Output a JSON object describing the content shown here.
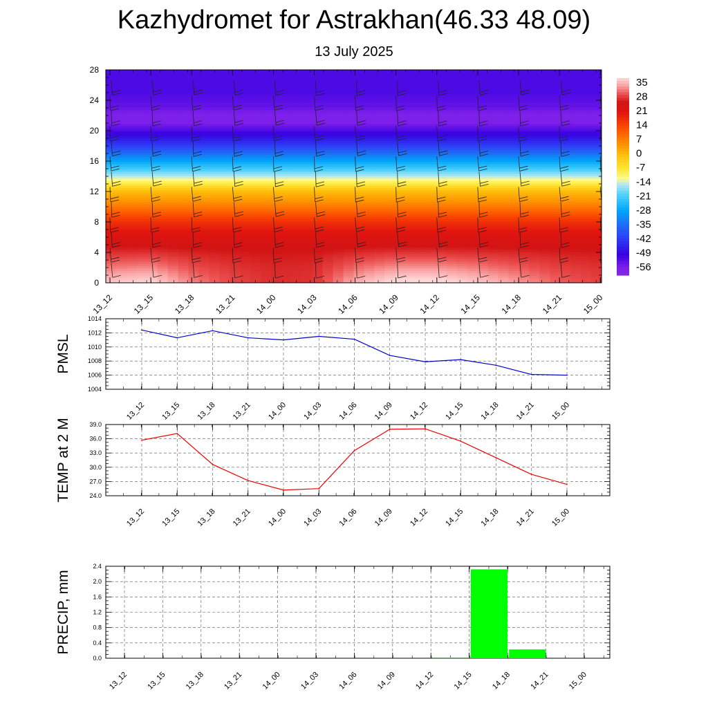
{
  "title": "Kazhydromet for Astrakhan(46.33 48.09)",
  "subtitle": "13 July 2025",
  "time_labels": [
    "13_12",
    "13_15",
    "13_18",
    "13_21",
    "14_00",
    "14_03",
    "14_06",
    "14_09",
    "14_12",
    "14_15",
    "14_18",
    "14_21",
    "15_00"
  ],
  "chart_data": [
    {
      "type": "heatmap",
      "name": "temperature-altitude-section",
      "x": [
        "13_12",
        "13_15",
        "13_18",
        "13_21",
        "14_00",
        "14_03",
        "14_06",
        "14_09",
        "14_12",
        "14_15",
        "14_18",
        "14_21",
        "15_00"
      ],
      "yticks": [
        0,
        4,
        8,
        12,
        16,
        20,
        24,
        28
      ],
      "ylim": [
        0,
        28
      ],
      "colorbar_labels": [
        "35",
        "28",
        "21",
        "14",
        "7",
        "0",
        "-7",
        "-14",
        "-21",
        "-28",
        "-35",
        "-42",
        "-49",
        "-56"
      ],
      "colorbar_range": [
        -60,
        38
      ],
      "profile": [
        [
          0,
          33
        ],
        [
          2,
          30
        ],
        [
          4,
          27
        ],
        [
          6,
          23
        ],
        [
          8,
          17
        ],
        [
          10,
          8
        ],
        [
          12,
          0
        ],
        [
          13,
          -8
        ],
        [
          14,
          -15
        ],
        [
          16,
          -28
        ],
        [
          18,
          -42
        ],
        [
          20,
          -52
        ],
        [
          21,
          -56
        ],
        [
          22,
          -57
        ],
        [
          23,
          -54
        ],
        [
          25,
          -52
        ],
        [
          28,
          -52
        ]
      ],
      "surface_temps": [
        35.5,
        37,
        30.5,
        27,
        25,
        25.5,
        33.5,
        38,
        38,
        35.5,
        32,
        28.5,
        26.5
      ],
      "wind_barbs": true
    },
    {
      "type": "line",
      "ylabel": "PMSL",
      "x": [
        "13_12",
        "13_15",
        "13_18",
        "13_21",
        "14_00",
        "14_03",
        "14_06",
        "14_09",
        "14_12",
        "14_15",
        "14_18",
        "14_21",
        "15_00"
      ],
      "values": [
        1012.4,
        1011.3,
        1012.3,
        1011.3,
        1011.0,
        1011.5,
        1011.1,
        1008.8,
        1007.9,
        1008.2,
        1007.4,
        1006.1,
        1006.0
      ],
      "ylim": [
        1004,
        1014
      ],
      "yticks": [
        "1004",
        "1006",
        "1008",
        "1010",
        "1012",
        "1014"
      ],
      "color": "#0000cc",
      "grid": true
    },
    {
      "type": "line",
      "ylabel": "TEMP at 2 M",
      "x": [
        "13_12",
        "13_15",
        "13_18",
        "13_21",
        "14_00",
        "14_03",
        "14_06",
        "14_09",
        "14_12",
        "14_15",
        "14_18",
        "14_21",
        "15_00"
      ],
      "values": [
        35.7,
        37.1,
        30.6,
        27.2,
        25.2,
        25.5,
        33.5,
        38.0,
        38.1,
        35.5,
        32.0,
        28.5,
        26.4
      ],
      "ylim": [
        24,
        39
      ],
      "yticks": [
        "24.0",
        "27.0",
        "30.0",
        "33.0",
        "36.0",
        "39.0"
      ],
      "color": "#ee0000",
      "grid": true
    },
    {
      "type": "bar",
      "ylabel": "PRECIP, mm",
      "x": [
        "13_12",
        "13_15",
        "13_18",
        "13_21",
        "14_00",
        "14_03",
        "14_06",
        "14_09",
        "14_12",
        "14_15",
        "14_18",
        "14_21",
        "15_00"
      ],
      "values": [
        0,
        0,
        0,
        0,
        0,
        0,
        0,
        0,
        0.02,
        2.32,
        0.23,
        0,
        0
      ],
      "ylim": [
        0,
        2.4
      ],
      "yticks": [
        "0.0",
        "0.4",
        "0.8",
        "1.2",
        "1.6",
        "2.0",
        "2.4"
      ],
      "color": "#00ff00",
      "grid": true
    }
  ]
}
